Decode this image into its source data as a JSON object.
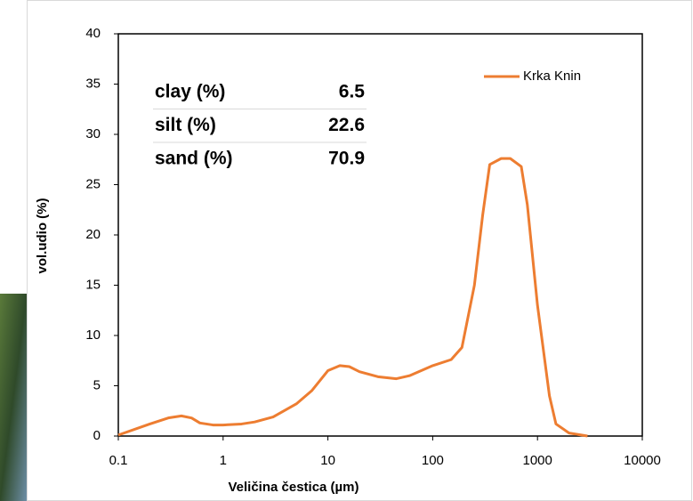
{
  "chart_data": {
    "type": "line",
    "x_label": "Veličina čestica (µm)",
    "y_label": "vol.udio (%)",
    "x": [
      0.1,
      0.2,
      0.3,
      0.4,
      0.5,
      0.6,
      0.8,
      1,
      1.5,
      2,
      3,
      5,
      7,
      10,
      13,
      16,
      20,
      30,
      45,
      60,
      100,
      150,
      190,
      250,
      300,
      350,
      450,
      550,
      700,
      800,
      1000,
      1300,
      1500,
      2000,
      3000
    ],
    "series": [
      {
        "name": "Krka Knin",
        "color": "#ed7d31",
        "values": [
          0.1,
          1.2,
          1.8,
          2.0,
          1.8,
          1.3,
          1.1,
          1.1,
          1.2,
          1.4,
          1.9,
          3.2,
          4.5,
          6.5,
          7.0,
          6.9,
          6.4,
          5.9,
          5.7,
          6.0,
          7.0,
          7.6,
          8.8,
          15,
          22,
          27,
          27.6,
          27.6,
          26.8,
          23,
          13,
          4,
          1.2,
          0.3,
          0
        ]
      }
    ],
    "xlim": [
      0.1,
      10000
    ],
    "xticks": [
      0.1,
      1,
      10,
      100,
      1000,
      10000
    ],
    "xlog": true,
    "ylim": [
      0,
      40
    ],
    "yticks": [
      0,
      5,
      10,
      15,
      20,
      25,
      30,
      35,
      40
    ],
    "legend": "top-right",
    "table": {
      "rows": [
        {
          "label": "clay (%)",
          "value": 6.5
        },
        {
          "label": "silt (%)",
          "value": 22.6
        },
        {
          "label": "sand (%)",
          "value": 70.9
        }
      ]
    }
  }
}
